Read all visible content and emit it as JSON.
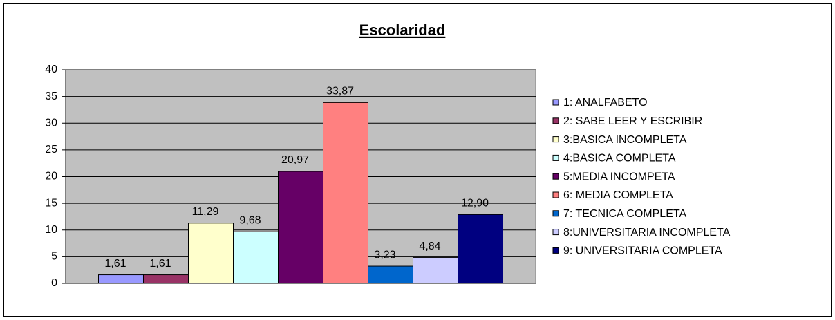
{
  "chart_data": {
    "type": "bar",
    "title": "Escolaridad",
    "ylim": [
      0,
      40
    ],
    "yticks": [
      0,
      5,
      10,
      15,
      20,
      25,
      30,
      35,
      40
    ],
    "grid": true,
    "series": [
      {
        "name": "1: ANALFABETO",
        "color": "#9999ff",
        "values": [
          1.61
        ],
        "value_labels": [
          "1,61"
        ]
      },
      {
        "name": "2: SABE LEER Y ESCRIBIR",
        "color": "#993366",
        "values": [
          1.61
        ],
        "value_labels": [
          "1,61"
        ]
      },
      {
        "name": "3:BASICA INCOMPLETA",
        "color": "#ffffcc",
        "values": [
          11.29
        ],
        "value_labels": [
          "11,29"
        ]
      },
      {
        "name": "4:BASICA COMPLETA",
        "color": "#ccffff",
        "values": [
          9.68
        ],
        "value_labels": [
          "9,68"
        ]
      },
      {
        "name": "5:MEDIA INCOMPETA",
        "color": "#660066",
        "values": [
          20.97
        ],
        "value_labels": [
          "20,97"
        ]
      },
      {
        "name": "6: MEDIA COMPLETA",
        "color": "#ff8080",
        "values": [
          33.87
        ],
        "value_labels": [
          "33,87"
        ]
      },
      {
        "name": "7: TECNICA COMPLETA",
        "color": "#0066cc",
        "values": [
          3.23
        ],
        "value_labels": [
          "3,23"
        ]
      },
      {
        "name": "8:UNIVERSITARIA INCOMPLETA",
        "color": "#ccccff",
        "values": [
          4.84
        ],
        "value_labels": [
          "4,84"
        ]
      },
      {
        "name": "9: UNIVERSITARIA COMPLETA",
        "color": "#000080",
        "values": [
          12.9
        ],
        "value_labels": [
          "12,90"
        ]
      }
    ]
  }
}
